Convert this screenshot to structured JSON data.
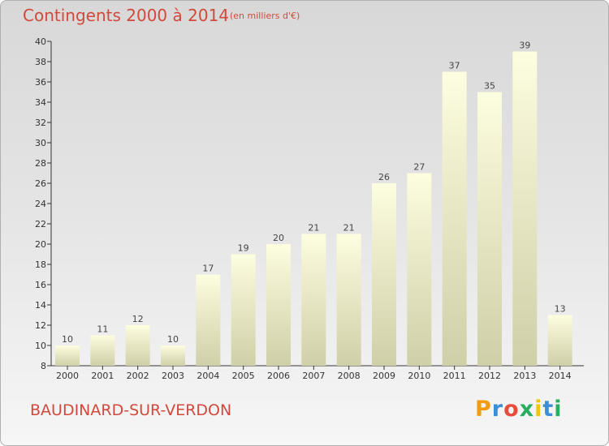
{
  "header": {
    "title": "Contingents 2000 à 2014",
    "subtitle": "(en milliers d'€)"
  },
  "footer": {
    "commune": "BAUDINARD-SUR-VERDON",
    "logo": {
      "letters": [
        "P",
        "r",
        "o",
        "x",
        "i",
        "t",
        "i"
      ],
      "colors": [
        "#f39c12",
        "#3a8fd8",
        "#e74c3c",
        "#27ae60",
        "#f1c40f",
        "#3a8fd8",
        "#27ae60"
      ]
    }
  },
  "chart_data": {
    "type": "bar",
    "title": "Contingents 2000 à 2014",
    "subtitle": "(en milliers d'€)",
    "categories": [
      "2000",
      "2001",
      "2002",
      "2003",
      "2004",
      "2005",
      "2006",
      "2007",
      "2008",
      "2009",
      "2010",
      "2011",
      "2012",
      "2013",
      "2014"
    ],
    "values": [
      10,
      11,
      12,
      10,
      17,
      19,
      20,
      21,
      21,
      26,
      27,
      37,
      35,
      39,
      13
    ],
    "ylim": [
      8,
      40
    ],
    "yticks": [
      8,
      10,
      12,
      14,
      16,
      18,
      20,
      22,
      24,
      26,
      28,
      30,
      32,
      34,
      36,
      38,
      40
    ],
    "grid": false,
    "data_labels": true,
    "colors": {
      "bar_top": "#fdfde0",
      "bar_bottom": "#cfcfa8",
      "text_accent": "#d2493b"
    }
  }
}
